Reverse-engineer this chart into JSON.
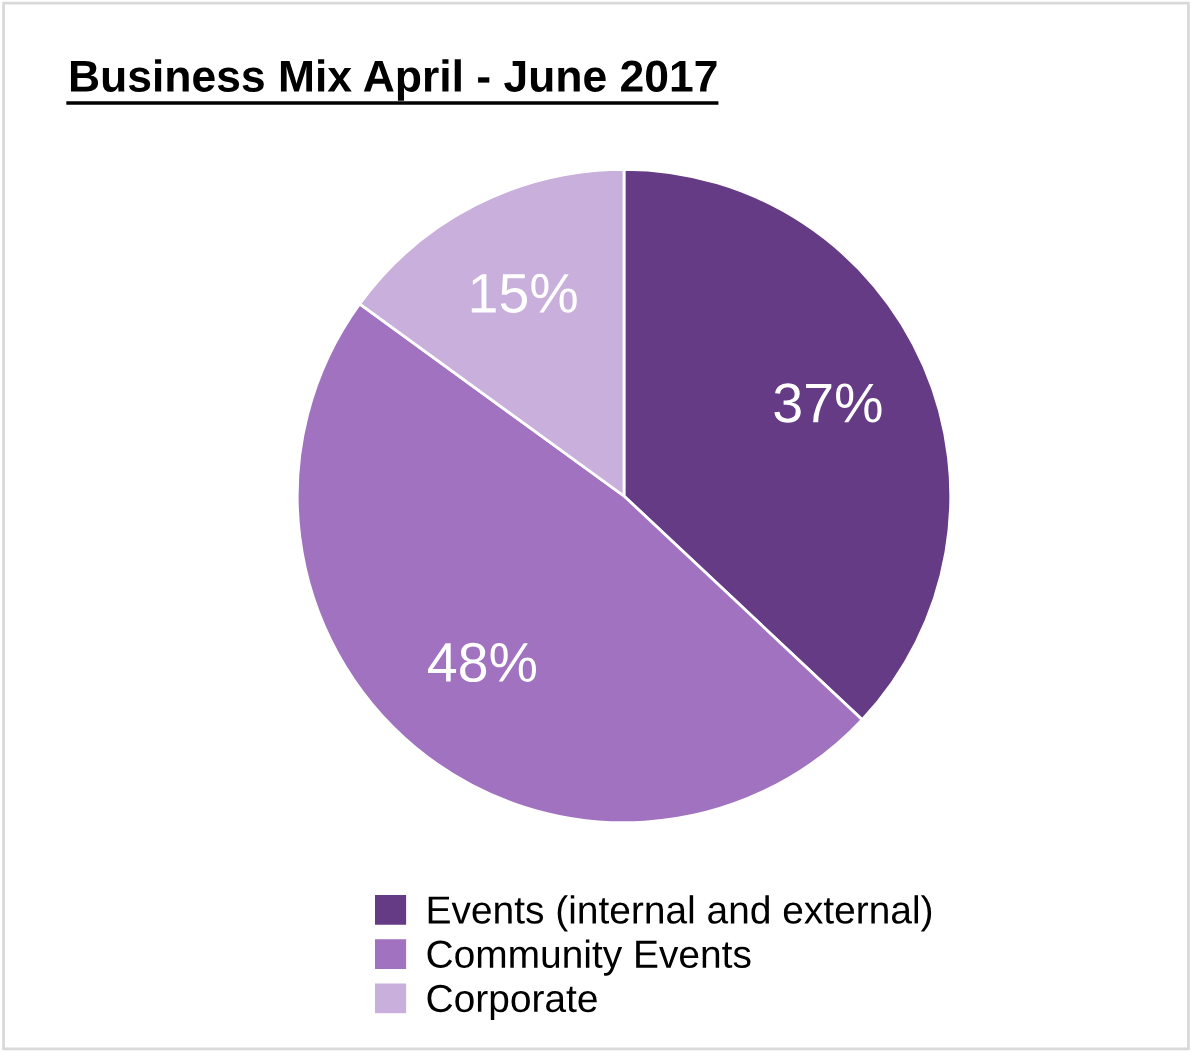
{
  "chart_data": {
    "type": "pie",
    "title": "Business Mix April - June 2017",
    "categories": [
      "Events (internal and external)",
      "Community Events",
      "Corporate"
    ],
    "values": [
      37,
      48,
      15
    ],
    "value_labels": [
      "37%",
      "48%",
      "15%"
    ],
    "colors": [
      "#643b84",
      "#a072bf",
      "#c9b0dc"
    ],
    "legend": "bottom"
  }
}
